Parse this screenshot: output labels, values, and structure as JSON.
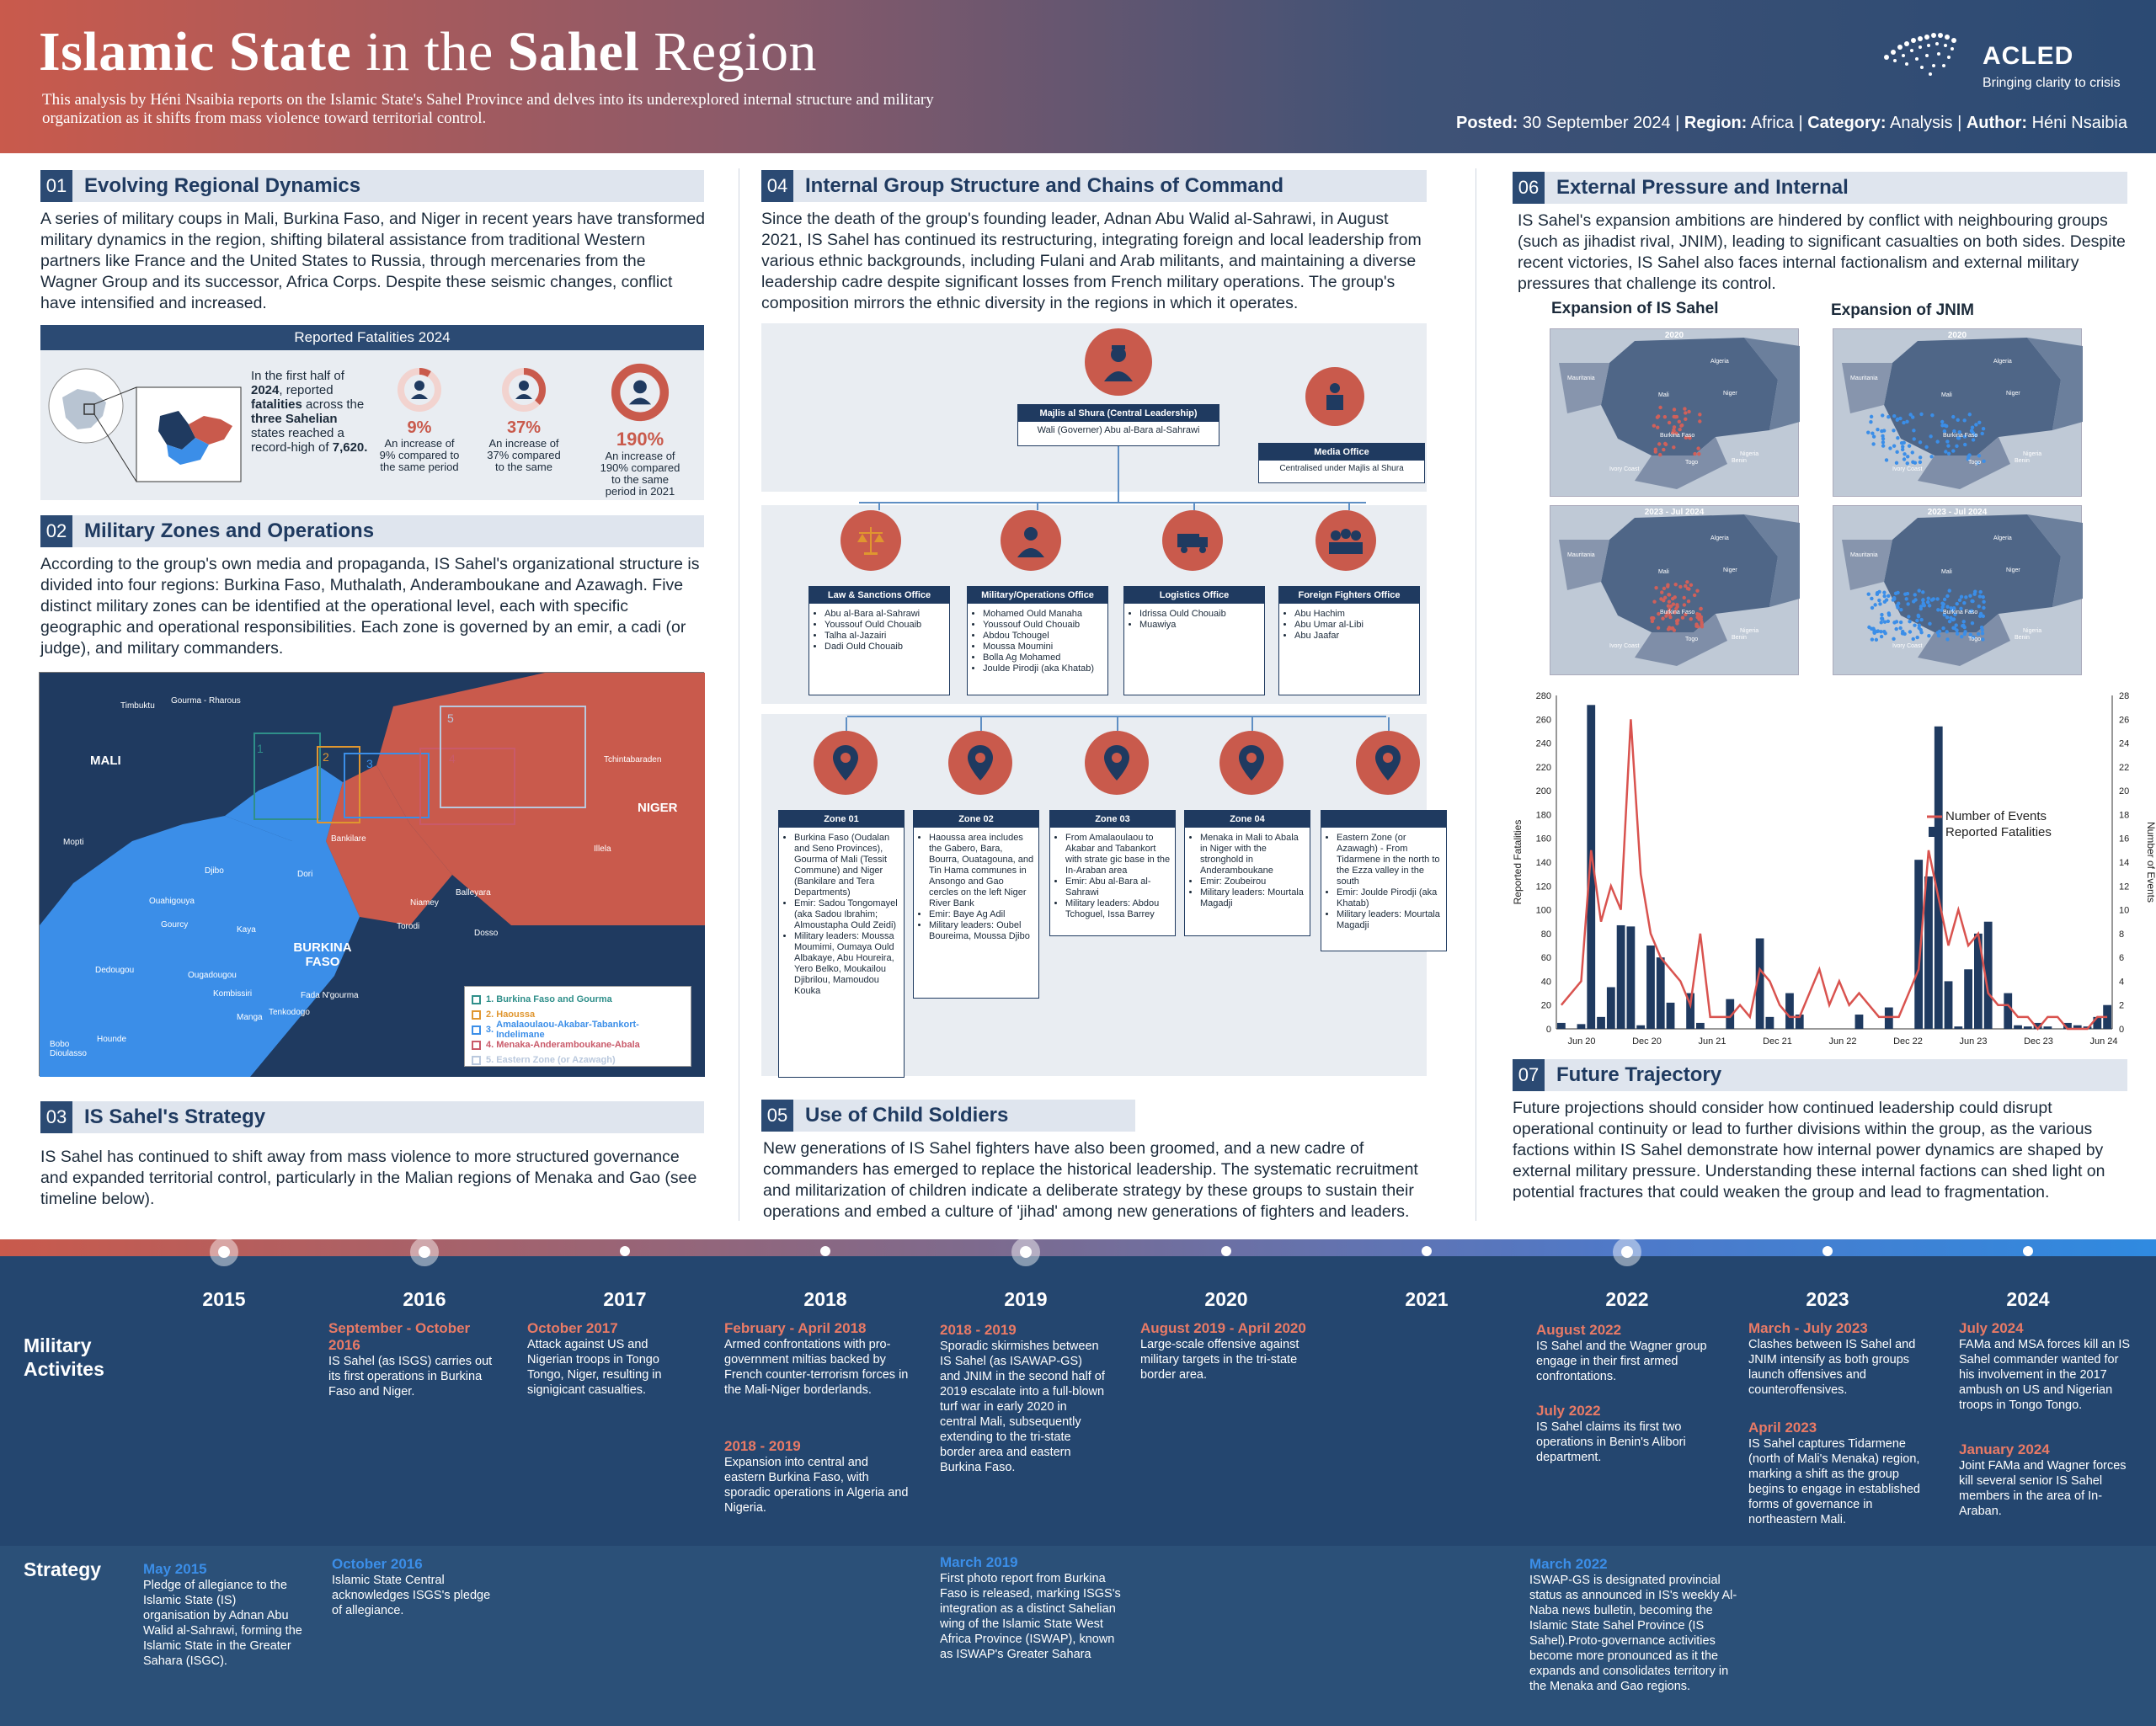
{
  "header": {
    "title_bold_1": "Islamic State",
    "title_thin_1": "in the",
    "title_bold_2": "Sahel",
    "title_thin_2": "Region",
    "subtitle": "This analysis by Héni Nsaibia reports on the Islamic State's Sahel Province and delves into its underexplored internal structure and military organization as it shifts from mass violence toward territorial control.",
    "logo_name": "ACLED",
    "logo_tag": "Bringing clarity to crisis",
    "meta": {
      "posted_lbl": "Posted:",
      "posted": "30 September 2024",
      "region_lbl": "Region:",
      "region": "Africa",
      "category_lbl": "Category:",
      "category": "Analysis",
      "author_lbl": "Author:",
      "author": "Héni Nsaibia"
    }
  },
  "sec01": {
    "num": "01",
    "title": "Evolving Regional Dynamics",
    "text": "A series of military coups in Mali, Burkina Faso, and Niger in recent years have transformed military dynamics in the region, shifting bilateral assistance from traditional Western partners like France and the United States to Russia, through mercenaries from the Wagner Group and its successor, Africa Corps. Despite these seismic changes, conflict have intensified and increased.",
    "box_title": "Reported Fatalities 2024",
    "box_text_1": "In the first half of",
    "box_text_2": "2024",
    "box_text_3": ", reported",
    "box_text_4": "fatalities",
    "box_text_5": "across the",
    "box_text_6": "three Sahelian",
    "box_text_7": "states reached a record-high of",
    "box_text_8": "7,620.",
    "stats": [
      {
        "pct": "9%",
        "cap": "An increase of 9% compared to the same period",
        "fill": 0.09
      },
      {
        "pct": "37%",
        "cap": "An increase of 37% compared to the same",
        "fill": 0.37
      },
      {
        "pct": "190%",
        "cap": "An increase of 190% compared to the same period in 2021",
        "fill": 1.0
      }
    ]
  },
  "sec02": {
    "num": "02",
    "title": "Military Zones and Operations",
    "text": "According to the group's own media and propaganda, IS Sahel's organizational structure is divided into four regions: Burkina Faso, Muthalath, Anderamboukane and Azawagh. Five distinct military zones can be identified at the operational level, each with specific geographic and operational responsibilities. Each zone is governed by an emir, a cadi (or judge), and military commanders.",
    "map": {
      "countries": [
        "MALI",
        "NIGER",
        "BURKINA FASO"
      ],
      "places": [
        "Timbuktu",
        "Gourma - Rharous",
        "Tchintabaraden",
        "Mopti",
        "Djibo",
        "Dori",
        "Bankilare",
        "Illela",
        "Ouahigouya",
        "Gourcy",
        "Kaya",
        "Niamey",
        "Balleyara",
        "Torodi",
        "Dosso",
        "Dedougou",
        "Ougadougou",
        "Kombissiri",
        "Fada N'gourma",
        "Manga",
        "Tenkodogo",
        "Bobo Dioulasso",
        "Hounde"
      ],
      "zone_nums": [
        "1",
        "2",
        "3",
        "4",
        "5"
      ],
      "legend": [
        {
          "n": "1.",
          "label": "Burkina Faso and Gourma",
          "color": "#2f8f8a"
        },
        {
          "n": "2.",
          "label": "Haoussa",
          "color": "#e0962f"
        },
        {
          "n": "3.",
          "label": "Amalaoulaou-Akabar-Tabankort-Indelimane",
          "color": "#3b8ee8"
        },
        {
          "n": "4.",
          "label": "Menaka-Anderamboukane-Abala",
          "color": "#c95a6a"
        },
        {
          "n": "5.",
          "label": "Eastern Zone (or Azawagh)",
          "color": "#b9c8dd"
        }
      ]
    }
  },
  "sec03": {
    "num": "03",
    "title": "IS Sahel's Strategy",
    "text": " IS Sahel has continued to shift away from mass violence to more structured governance and expanded territorial control, particularly in the Malian regions of Menaka and Gao (see timeline below)."
  },
  "sec04": {
    "num": "04",
    "title": "Internal Group Structure and Chains of Command",
    "text": "Since the death of the group's founding leader, Adnan Abu Walid al-Sahrawi, in August 2021, IS Sahel has continued its restructuring, integrating foreign and local leadership from various ethnic backgrounds, including Fulani and Arab militants, and maintaining a diverse leadership cadre despite significant losses from French military operations. The group's composition mirrors the ethnic diversity in the regions in which it operates.",
    "majlis": {
      "title": "Majlis al Shura (Central Leadership)",
      "sub": "Wali (Governer) Abu al-Bara al-Sahrawi"
    },
    "media": {
      "title": "Media Office",
      "sub": "Centralised under Majlis al Shura"
    },
    "offices": [
      {
        "title": "Law & Sanctions Office",
        "items": [
          "Abu al-Bara al-Sahrawi",
          "Youssouf Ould Chouaib",
          "Talha al-Jazairi",
          "Dadi Ould Chouaib"
        ]
      },
      {
        "title": "Military/Operations Office",
        "items": [
          "Mohamed Ould Manaha",
          "Youssouf Ould Chouaib",
          "Abdou Tchougel",
          "Moussa Moumini",
          "Bolla Ag Mohamed",
          "Joulde Pirodji (aka Khatab)"
        ]
      },
      {
        "title": "Logistics Office",
        "items": [
          "Idrissa Ould Chouaib",
          "Muawiya"
        ]
      },
      {
        "title": "Foreign Fighters Office",
        "items": [
          "Abu Hachim",
          "Abu Umar al-Libi",
          "Abu Jaafar"
        ]
      }
    ],
    "zones": [
      {
        "title": "Zone 01",
        "items": [
          "Burkina Faso (Oudalan and Seno Provinces), Gourma of Mali (Tessit Commune) and Niger (Bankilare and Tera Departments)",
          "Emir: Sadou Tongomayel (aka Sadou Ibrahim; Almoustapha Ould Zeidi)",
          "Military leaders: Moussa Moumimi, Oumaya Ould Albakaye, Abu Houreira, Yero Belko, Moukailou Djibrilou, Mamoudou Kouka"
        ]
      },
      {
        "title": "Zone 02",
        "items": [
          "Haoussa area includes the Gabero, Bara, Bourra, Ouatagouna, and Tin Hama communes in Ansongo and Gao cercles on the left Niger River Bank",
          "Emir: Baye Ag Adil",
          "Military leaders: Oubel Boureima, Moussa Djibo"
        ]
      },
      {
        "title": "Zone 03",
        "items": [
          "From Amalaoulaou to Akabar and Tabankort with strate gic base in the In-Araban area",
          "Emir: Abu al-Bara al-Sahrawi",
          "Military leaders: Abdou Tchoguel, Issa Barrey"
        ]
      },
      {
        "title": "Zone 04",
        "items": [
          "Menaka in Mali to Abala in Niger with the stronghold in Anderamboukane",
          "Emir: Zoubeirou",
          "Military leaders: Mourtala Magadji"
        ]
      },
      {
        "title": "",
        "items": [
          "Eastern Zone (or Azawagh) - From Tidarmene in the north to the Ezza valley in the south",
          "Emir: Joulde Pirodji (aka Khatab)",
          "Military leaders: Mourtala Magadji"
        ]
      }
    ]
  },
  "sec05": {
    "num": "05",
    "title": "Use of Child Soldiers",
    "text": "New generations of IS Sahel fighters have also been groomed, and a new cadre of commanders has emerged to replace the historical leadership. The systematic recruitment and militarization of children indicate a deliberate strategy by these groups to sustain their operations and embed a culture of 'jihad' among new generations of fighters and leaders."
  },
  "sec06": {
    "num": "06",
    "title": "External Pressure and Internal",
    "text": "IS Sahel's expansion ambitions are hindered by conflict with neighbouring groups (such as  jihadist rival, JNIM), leading to significant casualties on both sides. Despite recent victories, IS Sahel  also faces internal factionalism and external military pressures that challenge its control.",
    "map_a_title": "Expansion of IS Sahel",
    "map_b_title": "Expansion of JNIM",
    "map_periods": [
      "2020",
      "2020",
      "2023 - Jul 2024",
      "2023 - Jul 2024"
    ],
    "map_labels": [
      "Algeria",
      "Mauritania",
      "Mali",
      "Niger",
      "Burkina Faso",
      "Benin",
      "Ivory Coast",
      "Nigeria",
      "Togo"
    ],
    "colors": {
      "is": "#d0605a",
      "jnim": "#3b8ee8"
    }
  },
  "chart_data": {
    "type": "bar",
    "xlabel": "",
    "ylabel": "Reported Fatalities",
    "y2label": "Number of Events",
    "ylim": [
      0,
      280
    ],
    "y2lim": [
      0,
      28
    ],
    "yticks": [
      0,
      20,
      40,
      60,
      80,
      100,
      120,
      140,
      160,
      180,
      200,
      220,
      240,
      260,
      280
    ],
    "y2ticks": [
      0,
      2,
      4,
      6,
      8,
      10,
      12,
      14,
      16,
      18,
      20,
      22,
      24,
      26,
      28
    ],
    "x_tick_labels": [
      "Jun 20",
      "Dec 20",
      "Jun 21",
      "Dec 21",
      "Jun 22",
      "Dec 22",
      "Jun 23",
      "Dec 23",
      "Jun 24"
    ],
    "legend": [
      "Number of Events",
      "Reported Fatalities"
    ],
    "legend_position": "right",
    "series": [
      {
        "name": "Reported Fatalities",
        "kind": "bar",
        "color": "#1f3a60",
        "values": [
          5,
          0,
          4,
          272,
          10,
          35,
          87,
          86,
          3,
          70,
          60,
          22,
          0,
          30,
          5,
          0,
          0,
          25,
          0,
          0,
          76,
          10,
          0,
          30,
          12,
          0,
          0,
          0,
          0,
          0,
          12,
          0,
          0,
          18,
          0,
          0,
          142,
          128,
          254,
          40,
          2,
          50,
          80,
          90,
          0,
          30,
          3,
          2,
          5,
          2,
          0,
          5,
          3,
          2,
          10,
          20
        ]
      },
      {
        "name": "Number of Events",
        "kind": "line",
        "color": "#d9534f",
        "values": [
          2,
          3,
          4,
          15,
          9,
          12,
          10,
          26,
          13,
          8,
          6,
          5,
          4,
          2,
          8,
          1,
          1,
          1,
          2,
          1,
          5,
          4,
          2,
          1,
          1,
          3,
          5,
          2,
          4,
          2,
          3,
          2,
          1,
          1,
          1,
          3,
          5,
          15,
          11,
          7,
          10,
          7,
          8,
          3,
          2,
          2,
          1,
          1,
          0,
          1,
          1,
          0,
          0,
          0,
          1,
          1
        ]
      }
    ]
  },
  "sec07": {
    "num": "07",
    "title": "Future Trajectory",
    "text": "Future projections should consider how continued leadership could disrupt operational continuity or lead to further divisions within the group, as the various factions within IS Sahel demonstrate how internal power dynamics are shaped by external military pressure. Understanding these internal factions can shed light on potential fractures that could weaken the group and lead to fragmentation."
  },
  "timeline": {
    "years": [
      "2015",
      "2016",
      "2017",
      "2018",
      "2019",
      "2020",
      "2021",
      "2022",
      "2023",
      "2024"
    ],
    "row_military": "Military Activites",
    "row_strategy": "Strategy",
    "military": [
      {
        "date": "September - October 2016",
        "text": "IS Sahel (as ISGS) carries out its first operations in Burkina Faso and Niger."
      },
      {
        "date": "October 2017",
        "text": "Attack against US and Nigerian troops in Tongo Tongo, Niger, resulting in signigicant casualties."
      },
      {
        "date": "February - April 2018",
        "text": "Armed confrontations with pro-government miltias backed by French counter-terrorism forces in the Mali-Niger borderlands."
      },
      {
        "date": "2018 - 2019",
        "text": "Expansion into central and eastern Burkina Faso, with sporadic operations in Algeria and Nigeria."
      },
      {
        "date": "2018 - 2019",
        "text": "Sporadic skirmishes between IS Sahel (as ISAWAP-GS) and JNIM in the second half of 2019 escalate into a full-blown turf war in early 2020 in central Mali, subsequently extending to the tri-state border area and eastern Burkina Faso."
      },
      {
        "date": "August 2019 - April 2020",
        "text": "Large-scale offensive against military targets in the tri-state border area."
      },
      {
        "date": "August 2022",
        "text": "IS Sahel and the Wagner group engage in their first armed confrontations."
      },
      {
        "date": "July 2022",
        "text": "IS Sahel claims its first two operations in Benin's Alibori department."
      },
      {
        "date": "March - July 2023",
        "text": "Clashes between IS Sahel and JNIM intensify as both groups launch offensives and counteroffensives."
      },
      {
        "date": "April 2023",
        "text": "IS Sahel captures Tidarmene (north of Mali's Menaka) region, marking a shift as the group begins to engage in established forms of governance in northeastern Mali."
      },
      {
        "date": "July 2024",
        "text": "FAMa and MSA forces kill an IS Sahel commander wanted for his involvement in the 2017 ambush on US and Nigerian troops in Tongo Tongo."
      },
      {
        "date": "January 2024",
        "text": "Joint FAMa and Wagner forces kill several senior IS Sahel members in the area of In-Araban."
      }
    ],
    "strategy": [
      {
        "date": "May 2015",
        "text": "Pledge of allegiance to the Islamic State (IS) organisation by Adnan Abu Walid al-Sahrawi, forming the Islamic State in the Greater Sahara (ISGC)."
      },
      {
        "date": "October 2016",
        "text": "Islamic State Central acknowledges ISGS's pledge of allegiance."
      },
      {
        "date": "March 2019",
        "text": "First photo report from Burkina Faso is released, marking ISGS's integration as a distinct Sahelian wing of the Islamic State West Africa Province (ISWAP), known as ISWAP's Greater Sahara"
      },
      {
        "date": "March 2022",
        "text": "ISWAP-GS is designated provincial status as announced in IS's weekly Al-Naba news bulletin, becoming the Islamic State Sahel Province (IS Sahel).Proto-governance activities become more pronounced as it the expands and consolidates territory in the Menaka and Gao regions."
      }
    ]
  }
}
